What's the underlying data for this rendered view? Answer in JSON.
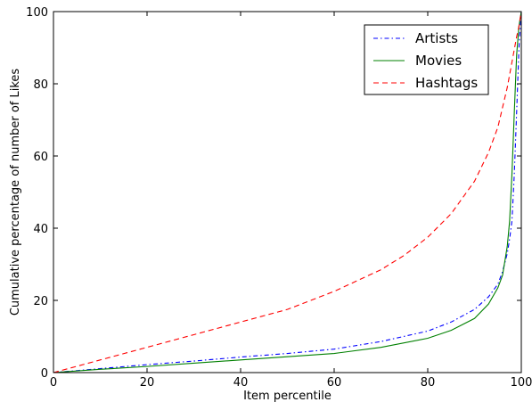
{
  "chart_data": {
    "type": "line",
    "xlabel": "Item percentile",
    "ylabel": "Cumulative percentage of number of Likes",
    "xlim": [
      0,
      100
    ],
    "ylim": [
      0,
      100
    ],
    "xticks": [
      "0",
      "20",
      "40",
      "60",
      "80",
      "100"
    ],
    "yticks": [
      "0",
      "20",
      "40",
      "60",
      "80",
      "100"
    ],
    "grid": false,
    "legend_position": "top-right",
    "series": [
      {
        "name": "Artists",
        "color": "#0000ff",
        "style": "dashdot",
        "x": [
          0,
          10,
          20,
          30,
          40,
          50,
          60,
          70,
          80,
          85,
          90,
          93,
          95,
          96,
          97,
          97.5,
          98,
          98.5,
          99,
          99.5,
          100
        ],
        "y": [
          0,
          1.1,
          2.2,
          3.2,
          4.3,
          5.3,
          6.5,
          8.6,
          11.5,
          14,
          17.5,
          21,
          24.5,
          28,
          33,
          37,
          42,
          55,
          72,
          90,
          100
        ]
      },
      {
        "name": "Movies",
        "color": "#008000",
        "style": "solid",
        "x": [
          0,
          10,
          20,
          30,
          40,
          50,
          60,
          70,
          80,
          85,
          90,
          93,
          95,
          96,
          97,
          97.5,
          98,
          98.5,
          99,
          99.5,
          100
        ],
        "y": [
          0,
          0.9,
          1.7,
          2.6,
          3.5,
          4.4,
          5.3,
          7,
          9.5,
          11.7,
          15,
          19,
          23.5,
          27,
          35,
          42,
          55,
          72,
          88,
          96,
          100
        ]
      },
      {
        "name": "Hashtags",
        "color": "#ff0000",
        "style": "dashed",
        "x": [
          0,
          10,
          20,
          30,
          40,
          50,
          60,
          70,
          75,
          80,
          85,
          90,
          93,
          95,
          97,
          98,
          99,
          99.5,
          100
        ],
        "y": [
          0,
          3.5,
          7,
          10.5,
          14,
          17.5,
          22.5,
          28.5,
          32.5,
          37.5,
          44,
          53,
          61,
          68,
          79,
          86,
          93,
          96,
          100
        ]
      }
    ]
  }
}
